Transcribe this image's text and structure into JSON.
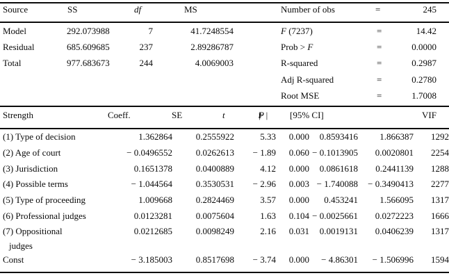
{
  "anova": {
    "headers": {
      "source": "Source",
      "ss": "SS",
      "df": "df",
      "ms": "MS"
    },
    "rows": [
      {
        "source": "Model",
        "ss": "292.073988",
        "df": "7",
        "ms": "41.7248554"
      },
      {
        "source": "Residual",
        "ss": "685.609685",
        "df": "237",
        "ms": "2.89286787"
      },
      {
        "source": "Total",
        "ss": "977.683673",
        "df": "244",
        "ms": "4.0069003"
      }
    ]
  },
  "stats": {
    "obs": {
      "label": "Number of obs",
      "eq": "=",
      "value": "245"
    },
    "rows": [
      {
        "pre": "",
        "it": "F",
        "post": " (7237)",
        "eq": "=",
        "value": "14.42"
      },
      {
        "pre": "Prob > ",
        "it": "F",
        "post": "",
        "eq": "=",
        "value": "0.0000"
      },
      {
        "pre": "R-squared",
        "it": "",
        "post": "",
        "eq": "=",
        "value": "0.2987"
      },
      {
        "pre": "Adj R-squared",
        "it": "",
        "post": "",
        "eq": "=",
        "value": "0.2780"
      },
      {
        "pre": "Root MSE",
        "it": "",
        "post": "",
        "eq": "=",
        "value": "1.7008"
      }
    ]
  },
  "coef": {
    "headers": {
      "strength": "Strength",
      "coeff": "Coeff.",
      "se": "SE",
      "t": "t",
      "p1": "P",
      "p2": " > |",
      "p3": "t",
      "p4": "|",
      "ci": "[95% CI]",
      "vif": "VIF"
    },
    "rows": [
      {
        "label": "(1) Type of decision",
        "coeff": "1.362864",
        "se": "0.2555922",
        "t": "5.33",
        "p": "0.000",
        "ci_low": "0.8593416",
        "ci_high": "1.866387",
        "vif": "1292"
      },
      {
        "label": "(2) Age of court",
        "coeff": "− 0.0496552",
        "se": "0.0262613",
        "t": "− 1.89",
        "p": "0.060",
        "ci_low": "− 0.1013905",
        "ci_high": "0.0020801",
        "vif": "2254"
      },
      {
        "label": "(3) Jurisdiction",
        "coeff": "0.1651378",
        "se": "0.0400889",
        "t": "4.12",
        "p": "0.000",
        "ci_low": "0.0861618",
        "ci_high": "0.2441139",
        "vif": "1288"
      },
      {
        "label": "(4) Possible terms",
        "coeff": "− 1.044564",
        "se": "0.3530531",
        "t": "− 2.96",
        "p": "0.003",
        "ci_low": "− 1.740088",
        "ci_high": "− 0.3490413",
        "vif": "2277"
      },
      {
        "label": "(5) Type of proceeding",
        "coeff": "1.009668",
        "se": "0.2824469",
        "t": "3.57",
        "p": "0.000",
        "ci_low": "0.453241",
        "ci_high": "1.566095",
        "vif": "1317"
      },
      {
        "label": "(6) Professional judges",
        "coeff": "0.0123281",
        "se": "0.0075604",
        "t": "1.63",
        "p": "0.104",
        "ci_low": "− 0.0025661",
        "ci_high": "0.0272223",
        "vif": "1666"
      },
      {
        "label": "(7) Oppositional",
        "label2": "judges",
        "coeff": "0.0212685",
        "se": "0.0098249",
        "t": "2.16",
        "p": "0.031",
        "ci_low": "0.0019131",
        "ci_high": "0.0406239",
        "vif": "1317"
      },
      {
        "label": "Const",
        "coeff": "− 3.185003",
        "se": "0.8517698",
        "t": "− 3.74",
        "p": "0.000",
        "ci_low": "− 4.86301",
        "ci_high": "− 1.506996",
        "vif": "1594"
      }
    ]
  }
}
